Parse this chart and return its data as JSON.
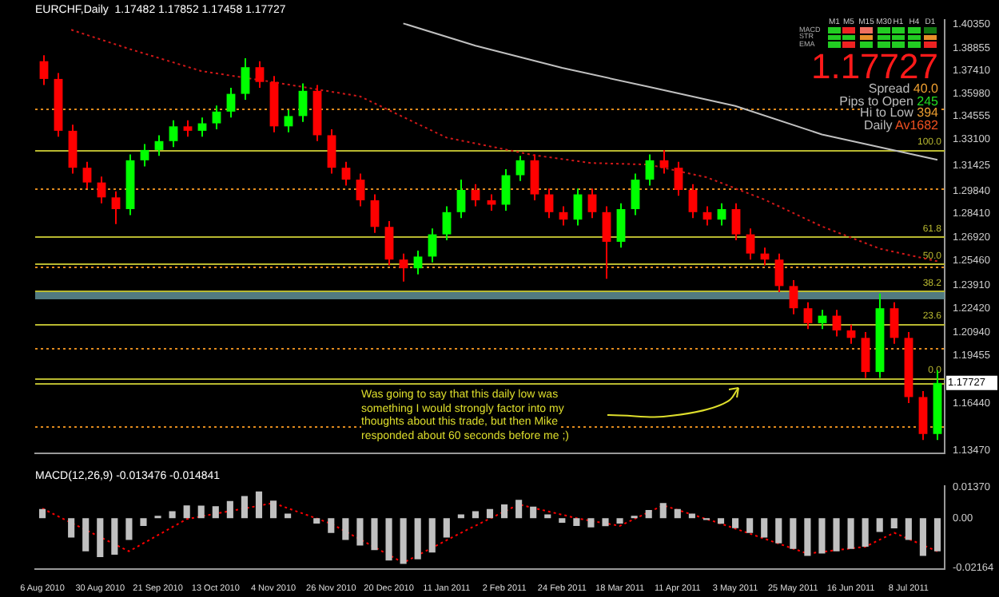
{
  "chart_data": [
    {
      "type": "candlestick",
      "title": "EURCHF,Daily  1.17482 1.17852 1.17458 1.17727",
      "categories": [
        null,
        null,
        null,
        null,
        null,
        null,
        null,
        null,
        null,
        null,
        null,
        null,
        null,
        null,
        null,
        null,
        null,
        null,
        null,
        null,
        null,
        null,
        null,
        null,
        null,
        null,
        null,
        null,
        null,
        null,
        null,
        null,
        null,
        null,
        null,
        null,
        null,
        null,
        null,
        null,
        null,
        null,
        null,
        null,
        null,
        null,
        null,
        null,
        null,
        null,
        null,
        null,
        null,
        null,
        null,
        null,
        null,
        null,
        null,
        null,
        null,
        null,
        null
      ],
      "ohlc": [
        [
          1.3802,
          1.3839,
          1.3652,
          1.369
        ],
        [
          1.369,
          1.3727,
          1.3326,
          1.3363
        ],
        [
          1.3363,
          1.3401,
          1.3093,
          1.313
        ],
        [
          1.313,
          1.3167,
          1.2999,
          1.3037
        ],
        [
          1.3037,
          1.3074,
          1.2906,
          1.2943
        ],
        [
          1.2943,
          1.2981,
          1.2775,
          1.2869
        ],
        [
          1.2869,
          1.3214,
          1.2831,
          1.3177
        ],
        [
          1.3177,
          1.3279,
          1.3139,
          1.3242
        ],
        [
          1.3242,
          1.3335,
          1.3205,
          1.3298
        ],
        [
          1.3298,
          1.3429,
          1.3261,
          1.3391
        ],
        [
          1.3391,
          1.3429,
          1.3326,
          1.3363
        ],
        [
          1.3363,
          1.3447,
          1.3326,
          1.341
        ],
        [
          1.341,
          1.3522,
          1.3373,
          1.3484
        ],
        [
          1.3484,
          1.3634,
          1.3447,
          1.3596
        ],
        [
          1.3596,
          1.382,
          1.3559,
          1.3764
        ],
        [
          1.3764,
          1.3802,
          1.3634,
          1.3671
        ],
        [
          1.3671,
          1.3708,
          1.3354,
          1.3391
        ],
        [
          1.3391,
          1.3494,
          1.3354,
          1.3456
        ],
        [
          1.3456,
          1.3662,
          1.3419,
          1.3615
        ],
        [
          1.3615,
          1.3652,
          1.3298,
          1.3335
        ],
        [
          1.3335,
          1.3373,
          1.3093,
          1.313
        ],
        [
          1.313,
          1.3167,
          1.3018,
          1.3055
        ],
        [
          1.3055,
          1.3093,
          1.2887,
          1.2925
        ],
        [
          1.2925,
          1.2962,
          1.2719,
          1.2757
        ],
        [
          1.2757,
          1.2794,
          1.2514,
          1.2551
        ],
        [
          1.2551,
          1.2589,
          1.2412,
          1.2496
        ],
        [
          1.2496,
          1.2607,
          1.2458,
          1.257
        ],
        [
          1.257,
          1.2747,
          1.2533,
          1.271
        ],
        [
          1.271,
          1.2887,
          1.2673,
          1.285
        ],
        [
          1.285,
          1.3055,
          1.2813,
          1.299
        ],
        [
          1.299,
          1.3027,
          1.2887,
          1.2925
        ],
        [
          1.2925,
          1.2962,
          1.2859,
          1.2897
        ],
        [
          1.2897,
          1.3121,
          1.2859,
          1.3083
        ],
        [
          1.3083,
          1.3205,
          1.3046,
          1.3177
        ],
        [
          1.3177,
          1.3214,
          1.2925,
          1.2962
        ],
        [
          1.2962,
          1.2999,
          1.2813,
          1.285
        ],
        [
          1.285,
          1.2887,
          1.2766,
          1.2803
        ],
        [
          1.2803,
          1.2999,
          1.2766,
          1.2962
        ],
        [
          1.2962,
          1.2999,
          1.2813,
          1.285
        ],
        [
          1.285,
          1.2887,
          1.243,
          1.2663
        ],
        [
          1.2663,
          1.2906,
          1.2626,
          1.2869
        ],
        [
          1.2869,
          1.3093,
          1.2831,
          1.3055
        ],
        [
          1.3055,
          1.3214,
          1.3018,
          1.3177
        ],
        [
          1.3177,
          1.3242,
          1.3093,
          1.313
        ],
        [
          1.313,
          1.3167,
          1.2953,
          1.299
        ],
        [
          1.299,
          1.3027,
          1.2813,
          1.285
        ],
        [
          1.285,
          1.2887,
          1.2766,
          1.2803
        ],
        [
          1.2803,
          1.2906,
          1.2766,
          1.2869
        ],
        [
          1.2869,
          1.2906,
          1.2673,
          1.271
        ],
        [
          1.271,
          1.2747,
          1.2551,
          1.2589
        ],
        [
          1.2589,
          1.2626,
          1.2514,
          1.2551
        ],
        [
          1.2551,
          1.2589,
          1.2346,
          1.2384
        ],
        [
          1.2384,
          1.2421,
          1.2206,
          1.2244
        ],
        [
          1.2244,
          1.2281,
          1.2113,
          1.215
        ],
        [
          1.215,
          1.2234,
          1.2113,
          1.2197
        ],
        [
          1.2197,
          1.2234,
          1.2066,
          1.2104
        ],
        [
          1.2104,
          1.2141,
          1.202,
          1.2057
        ],
        [
          1.2057,
          1.2094,
          1.1805,
          1.1842
        ],
        [
          1.1842,
          1.2337,
          1.1805,
          1.2244
        ],
        [
          1.2244,
          1.2281,
          1.202,
          1.2057
        ],
        [
          1.2057,
          1.2094,
          1.1646,
          1.1684
        ],
        [
          1.1684,
          1.1721,
          1.1413,
          1.1451
        ],
        [
          1.1451,
          1.1852,
          1.1413,
          1.1773
        ]
      ],
      "colors": [
        "#ff0000",
        "#ff0000",
        "#ff0000",
        "#ff0000",
        "#ff0000",
        "#ff0000",
        "#00ff00",
        "#00ff00",
        "#00ff00",
        "#00ff00",
        "#ff0000",
        "#00ff00",
        "#00ff00",
        "#00ff00",
        "#00ff00",
        "#ff0000",
        "#ff0000",
        "#00ff00",
        "#00ff00",
        "#ff0000",
        "#ff0000",
        "#ff0000",
        "#ff0000",
        "#ff0000",
        "#ff0000",
        "#ff0000",
        "#00ff00",
        "#00ff00",
        "#00ff00",
        "#00ff00",
        "#ff0000",
        "#ff0000",
        "#00ff00",
        "#00ff00",
        "#ff0000",
        "#ff0000",
        "#ff0000",
        "#00ff00",
        "#ff0000",
        "#ff0000",
        "#00ff00",
        "#00ff00",
        "#00ff00",
        "#ff0000",
        "#ff0000",
        "#ff0000",
        "#ff0000",
        "#00ff00",
        "#ff0000",
        "#ff0000",
        "#ff0000",
        "#ff0000",
        "#ff0000",
        "#ff0000",
        "#00ff00",
        "#ff0000",
        "#ff0000",
        "#ff0000",
        "#00ff00",
        "#ff0000",
        "#ff0000",
        "#ff0000",
        "#00ff00"
      ],
      "series": [
        {
          "type": "line",
          "color": "#d01818",
          "line_style": "dotted",
          "values": [
            null,
            null,
            1.4,
            null,
            null,
            null,
            1.388,
            null,
            null,
            null,
            null,
            1.374,
            null,
            null,
            null,
            null,
            1.367,
            null,
            null,
            null,
            null,
            null,
            1.358,
            null,
            null,
            null,
            null,
            null,
            1.332,
            null,
            null,
            null,
            null,
            null,
            1.321,
            null,
            null,
            null,
            1.316,
            null,
            null,
            null,
            1.315,
            null,
            null,
            null,
            1.307,
            null,
            null,
            null,
            1.293,
            null,
            null,
            null,
            1.276,
            null,
            null,
            null,
            1.262,
            null,
            null,
            null,
            1.254
          ]
        },
        {
          "type": "line",
          "color": "#c0c0c0",
          "values": [
            null,
            null,
            null,
            null,
            null,
            null,
            null,
            null,
            null,
            null,
            null,
            null,
            null,
            null,
            null,
            null,
            null,
            null,
            null,
            null,
            null,
            null,
            null,
            null,
            null,
            1.404,
            null,
            null,
            null,
            null,
            1.39,
            null,
            null,
            null,
            null,
            null,
            1.376,
            null,
            null,
            null,
            null,
            null,
            1.364,
            null,
            null,
            null,
            null,
            null,
            1.352,
            null,
            null,
            null,
            null,
            null,
            1.334,
            null,
            null,
            null,
            null,
            null,
            null,
            null,
            1.318
          ]
        }
      ],
      "ylim": [
        1.1329,
        1.4063
      ],
      "yticks": [
        {
          "value": 1.4035,
          "label": "1.40350"
        },
        {
          "value": 1.38855,
          "label": "1.38855"
        },
        {
          "value": 1.3741,
          "label": "1.37410"
        },
        {
          "value": 1.3598,
          "label": "1.35980"
        },
        {
          "value": 1.34555,
          "label": "1.34555"
        },
        {
          "value": 1.331,
          "label": "1.33100"
        },
        {
          "value": 1.31425,
          "label": "1.31425"
        },
        {
          "value": 1.2984,
          "label": "1.29840"
        },
        {
          "value": 1.2841,
          "label": "1.28410"
        },
        {
          "value": 1.2692,
          "label": "1.26920"
        },
        {
          "value": 1.2546,
          "label": "1.25460"
        },
        {
          "value": 1.2391,
          "label": "1.23910"
        },
        {
          "value": 1.2242,
          "label": "1.22420"
        },
        {
          "value": 1.2094,
          "label": "1.20940"
        },
        {
          "value": 1.19455,
          "label": "1.19455"
        },
        {
          "value": 1.1644,
          "label": "1.16440"
        },
        {
          "value": 1.1347,
          "label": "1.13470"
        }
      ],
      "ref_lines": [
        {
          "axis": "y",
          "value": 1.3503,
          "color": "#e08a1e",
          "line_style": "dotted"
        },
        {
          "axis": "y",
          "value": 1.2999,
          "color": "#e08a1e",
          "line_style": "dotted"
        },
        {
          "axis": "y",
          "value": 1.2505,
          "color": "#e08a1e",
          "line_style": "dotted"
        },
        {
          "axis": "y",
          "value": 1.1997,
          "color": "#e08a1e",
          "line_style": "dotted"
        },
        {
          "axis": "y",
          "value": 1.1499,
          "color": "#e08a1e",
          "line_style": "dotted"
        },
        {
          "axis": "y",
          "value": 1.3242,
          "color": "#b8b830",
          "line_style": "solid"
        },
        {
          "axis": "y",
          "value": 1.2693,
          "color": "#b8b830",
          "line_style": "solid"
        },
        {
          "axis": "y",
          "value": 1.2524,
          "color": "#b8b830",
          "line_style": "solid"
        },
        {
          "axis": "y",
          "value": 1.2354,
          "color": "#b8b830",
          "line_style": "solid"
        },
        {
          "axis": "y",
          "value": 1.2144,
          "color": "#b8b830",
          "line_style": "solid"
        },
        {
          "axis": "y",
          "value": 1.1805,
          "color": "#b8b830",
          "line_style": "solid"
        },
        {
          "axis": "y",
          "value": 1.17727,
          "label": "1.17727",
          "color": "#b8b830",
          "line_style": "solid"
        }
      ],
      "bands": [
        {
          "axis": "y",
          "from": 1.23,
          "to": 1.2356,
          "color": "#5f8f96"
        }
      ],
      "annotations": [
        "Was going to say that this daily low was something I would strongly factor into my thoughts about this trade, but then Mike responded about 60 seconds before me ;)",
        {
          "text": "100.0",
          "y": 1.3242
        },
        {
          "text": "61.8",
          "y": 1.2693
        },
        {
          "text": "50.0",
          "y": 1.2524
        },
        {
          "text": "38.2",
          "y": 1.2354
        },
        {
          "text": "23.6",
          "y": 1.2144
        },
        {
          "text": "0.0",
          "y": 1.1805
        },
        "1.17727",
        "Spread 40.0",
        "Pips to Open 245",
        "Hi to Low 394",
        "Daily Av1682",
        "M1",
        "M5",
        "M15",
        "M30",
        "H1",
        "H4",
        "D1",
        "MACD",
        "STR",
        "EMA"
      ],
      "tick_labels": "y",
      "grid": false,
      "legend": false
    },
    {
      "type": "bar",
      "title": "MACD(12,26,9) -0.013476 -0.014841",
      "categories": [
        "6 Aug 2010",
        null,
        null,
        null,
        "30 Aug 2010",
        null,
        null,
        null,
        "21 Sep 2010",
        null,
        null,
        null,
        "13 Oct 2010",
        null,
        null,
        null,
        "4 Nov 2010",
        null,
        null,
        null,
        "26 Nov 2010",
        null,
        null,
        null,
        "20 Dec 2010",
        null,
        null,
        null,
        "11 Jan 2011",
        null,
        null,
        null,
        "2 Feb 2011",
        null,
        null,
        null,
        "24 Feb 2011",
        null,
        null,
        null,
        "18 Mar 2011",
        null,
        null,
        null,
        "11 Apr 2011",
        null,
        null,
        null,
        "3 May 2011",
        null,
        null,
        null,
        "25 May 2011",
        null,
        null,
        null,
        "16 Jun 2011",
        null,
        null,
        null,
        "8 Jul 2011",
        null,
        null
      ],
      "series": [
        {
          "type": "bar",
          "color": "#c0c0c0",
          "values": [
            0.004,
            0,
            -0.0085,
            -0.0145,
            -0.017,
            -0.016,
            -0.0095,
            -0.0034,
            0.001,
            0.003,
            0.0056,
            0.0055,
            0.0052,
            0.0075,
            0.0097,
            0.0117,
            0.0077,
            0.002,
            0,
            -0.0024,
            -0.0065,
            -0.0095,
            -0.012,
            -0.014,
            -0.0185,
            -0.02,
            -0.018,
            -0.015,
            -0.0085,
            0.0016,
            0.003,
            0.004,
            0.006,
            0.008,
            0.005,
            0.0016,
            -0.002,
            -0.0034,
            -0.004,
            -0.0035,
            -0.0024,
            0.001,
            0.0036,
            0.0066,
            0.004,
            0.002,
            -0.0008,
            -0.0025,
            -0.0044,
            -0.0065,
            -0.0085,
            -0.011,
            -0.0135,
            -0.0165,
            -0.0155,
            -0.0145,
            -0.0135,
            -0.0125,
            -0.006,
            -0.0045,
            -0.0095,
            -0.0165,
            -0.0145
          ]
        },
        {
          "type": "line",
          "color": "#ff0000",
          "line_style": "dotted",
          "values": [
            0.0042,
            null,
            null,
            null,
            null,
            null,
            -0.0145,
            null,
            null,
            null,
            -0.0004,
            null,
            null,
            null,
            null,
            null,
            0.0066,
            null,
            null,
            null,
            -0.0024,
            null,
            null,
            null,
            null,
            -0.0195,
            null,
            null,
            null,
            -0.0064,
            null,
            null,
            null,
            0.006,
            null,
            null,
            null,
            0,
            null,
            null,
            -0.0034,
            null,
            null,
            0.0056,
            null,
            null,
            null,
            -0.0024,
            null,
            null,
            null,
            null,
            null,
            -0.0155,
            null,
            null,
            null,
            -0.0125,
            null,
            -0.0064,
            null,
            null,
            -0.0145
          ]
        }
      ],
      "ylim": [
        -0.0222,
        0.0141
      ],
      "yticks": [
        {
          "value": 0.0137,
          "label": "0.01370"
        },
        {
          "value": 0,
          "label": "0.00"
        },
        {
          "value": -0.02164,
          "label": "-0.02164"
        }
      ],
      "grid": false,
      "legend": false
    }
  ]
}
